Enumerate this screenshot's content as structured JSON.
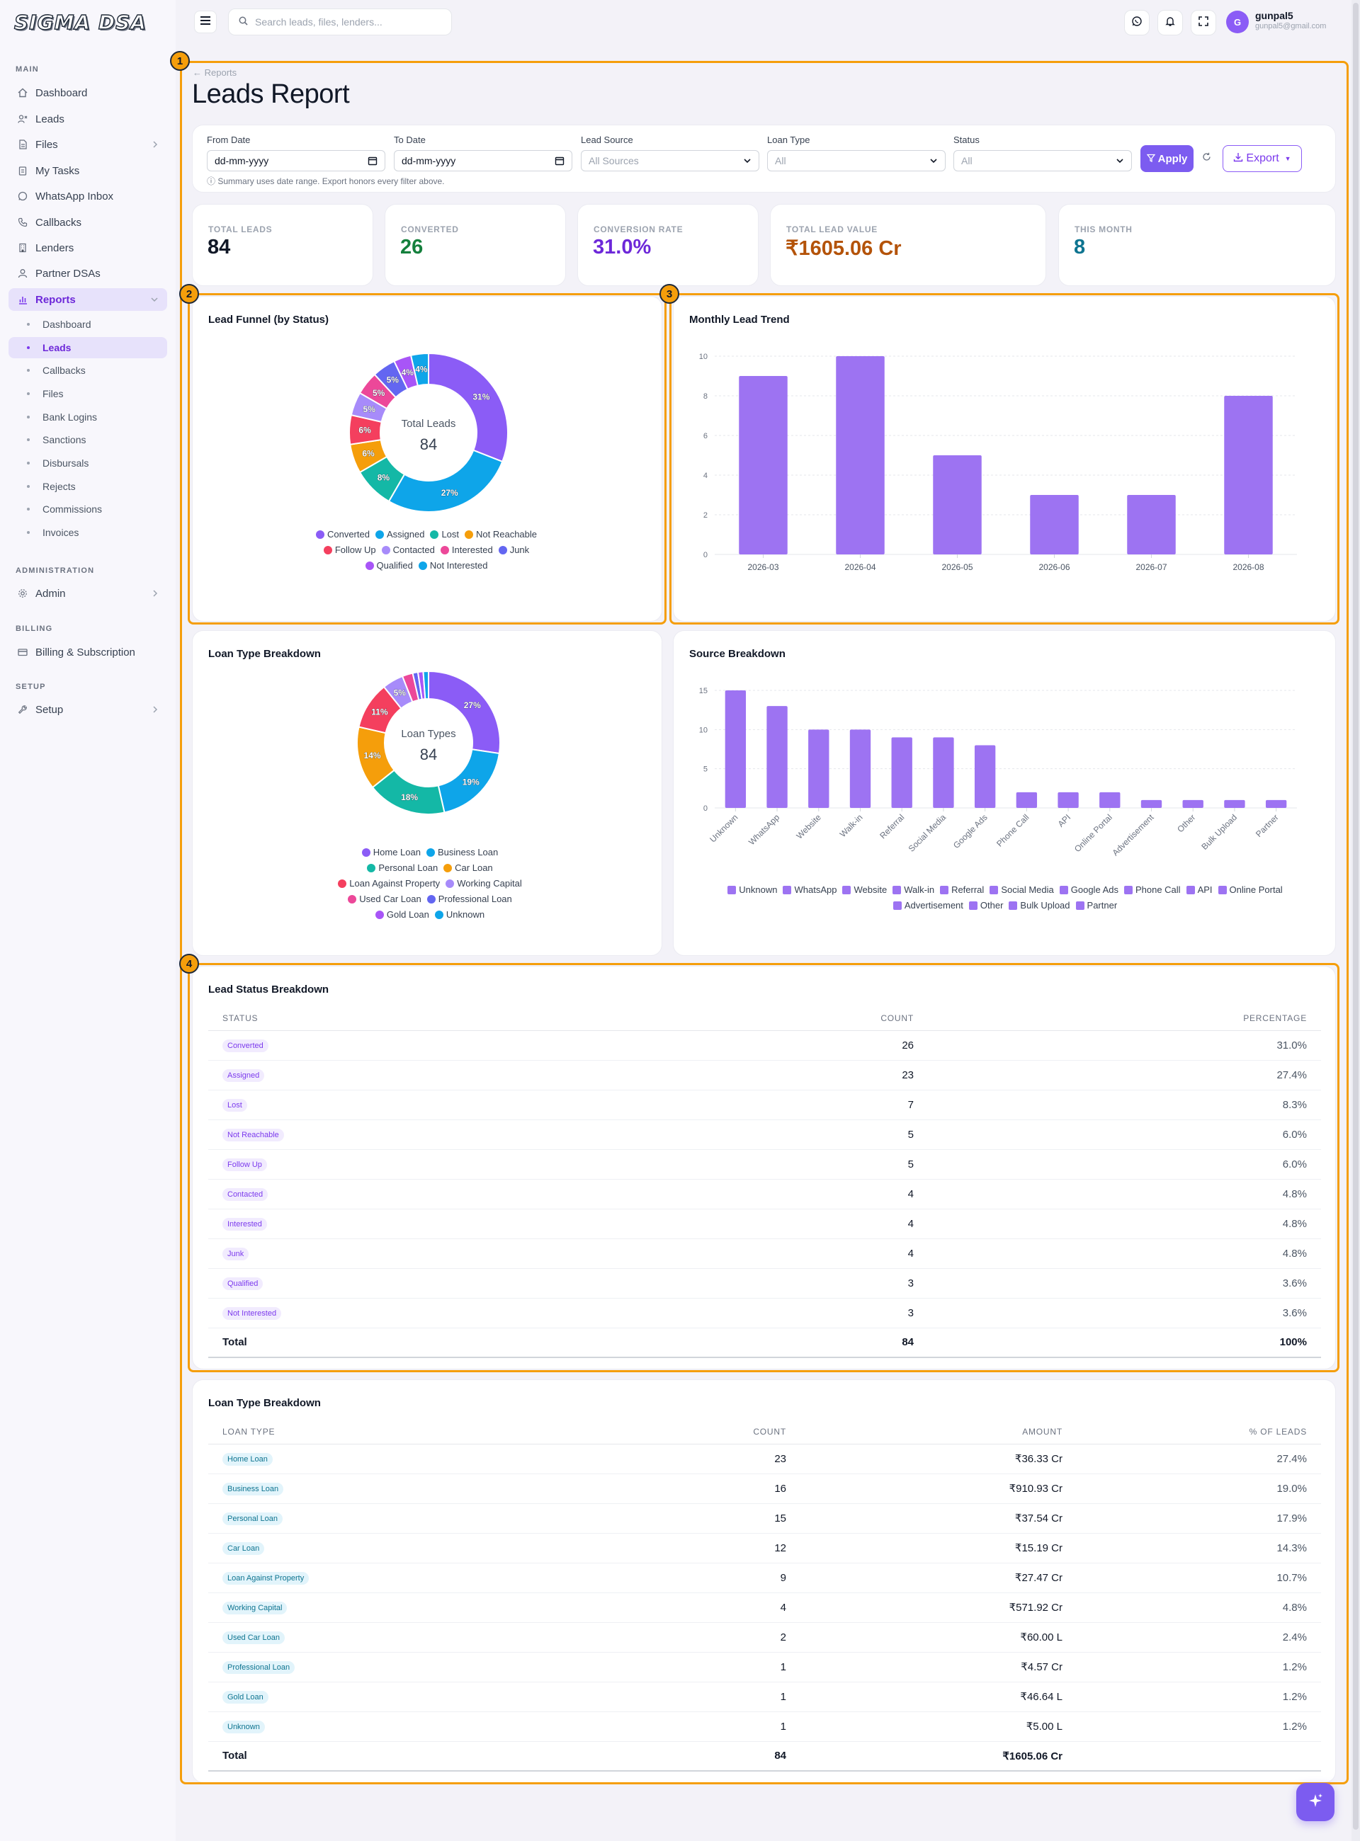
{
  "app": {
    "logo": "SIGMA DSA"
  },
  "search": {
    "placeholder": "Search leads, files, lenders..."
  },
  "user": {
    "initial": "G",
    "name": "gunpal5",
    "email": "gunpal5@gmail.com"
  },
  "sidebar": {
    "main_label": "MAIN",
    "admin_label": "ADMINISTRATION",
    "billing_label": "BILLING",
    "setup_label": "SETUP",
    "items": [
      "Dashboard",
      "Leads",
      "Files",
      "My Tasks",
      "WhatsApp Inbox",
      "Callbacks",
      "Lenders",
      "Partner DSAs",
      "Reports"
    ],
    "reports_sub": [
      "Dashboard",
      "Leads",
      "Callbacks",
      "Files",
      "Bank Logins",
      "Sanctions",
      "Disbursals",
      "Rejects",
      "Commissions",
      "Invoices"
    ],
    "admin": "Admin",
    "billing": "Billing & Subscription",
    "setup": "Setup"
  },
  "page": {
    "breadcrumb": "Reports",
    "title": "Leads Report"
  },
  "filters": {
    "from_label": "From Date",
    "from_value": "dd-mm-yyyy",
    "to_label": "To Date",
    "to_value": "dd-mm-yyyy",
    "source_label": "Lead Source",
    "source_value": "All Sources",
    "loan_label": "Loan Type",
    "loan_value": "All",
    "status_label": "Status",
    "status_value": "All",
    "apply": "Apply",
    "export": "Export",
    "note": "Summary uses date range. Export honors every filter above."
  },
  "stats": [
    {
      "label": "TOTAL LEADS",
      "value": "84",
      "color": "#111827"
    },
    {
      "label": "CONVERTED",
      "value": "26",
      "color": "#15803d"
    },
    {
      "label": "CONVERSION RATE",
      "value": "31.0%",
      "color": "#6d28d9"
    },
    {
      "label": "TOTAL LEAD VALUE",
      "value": "₹1605.06 Cr",
      "color": "#b45309"
    },
    {
      "label": "THIS MONTH",
      "value": "8",
      "color": "#0e7490"
    }
  ],
  "annotations": [
    "1",
    "2",
    "3",
    "4"
  ],
  "funnel": {
    "title": "Lead Funnel (by Status)",
    "center_label": "Total Leads",
    "center_value": "84"
  },
  "trend": {
    "title": "Monthly Lead Trend"
  },
  "loanpie": {
    "title": "Loan Type Breakdown",
    "center_label": "Loan Types",
    "center_value": "84"
  },
  "source": {
    "title": "Source Breakdown"
  },
  "status_table": {
    "title": "Lead Status Breakdown",
    "headers": [
      "STATUS",
      "COUNT",
      "PERCENTAGE"
    ],
    "rows": [
      [
        "Converted",
        "26",
        "31.0%"
      ],
      [
        "Assigned",
        "23",
        "27.4%"
      ],
      [
        "Lost",
        "7",
        "8.3%"
      ],
      [
        "Not Reachable",
        "5",
        "6.0%"
      ],
      [
        "Follow Up",
        "5",
        "6.0%"
      ],
      [
        "Contacted",
        "4",
        "4.8%"
      ],
      [
        "Interested",
        "4",
        "4.8%"
      ],
      [
        "Junk",
        "4",
        "4.8%"
      ],
      [
        "Qualified",
        "3",
        "3.6%"
      ],
      [
        "Not Interested",
        "3",
        "3.6%"
      ]
    ],
    "total": [
      "Total",
      "84",
      "100%"
    ]
  },
  "loan_table": {
    "title": "Loan Type Breakdown",
    "headers": [
      "LOAN TYPE",
      "COUNT",
      "AMOUNT",
      "% OF LEADS"
    ],
    "rows": [
      [
        "Home Loan",
        "23",
        "₹36.33 Cr",
        "27.4%"
      ],
      [
        "Business Loan",
        "16",
        "₹910.93 Cr",
        "19.0%"
      ],
      [
        "Personal Loan",
        "15",
        "₹37.54 Cr",
        "17.9%"
      ],
      [
        "Car Loan",
        "12",
        "₹15.19 Cr",
        "14.3%"
      ],
      [
        "Loan Against Property",
        "9",
        "₹27.47 Cr",
        "10.7%"
      ],
      [
        "Working Capital",
        "4",
        "₹571.92 Cr",
        "4.8%"
      ],
      [
        "Used Car Loan",
        "2",
        "₹60.00 L",
        "2.4%"
      ],
      [
        "Professional Loan",
        "1",
        "₹4.57 Cr",
        "1.2%"
      ],
      [
        "Gold Loan",
        "1",
        "₹46.64 L",
        "1.2%"
      ],
      [
        "Unknown",
        "1",
        "₹5.00 L",
        "1.2%"
      ]
    ],
    "total": [
      "Total",
      "84",
      "₹1605.06 Cr",
      ""
    ]
  },
  "chart_data": [
    {
      "type": "pie",
      "title": "Lead Funnel (by Status)",
      "categories": [
        "Converted",
        "Assigned",
        "Lost",
        "Not Reachable",
        "Follow Up",
        "Contacted",
        "Interested",
        "Junk",
        "Qualified",
        "Not Interested"
      ],
      "values": [
        26,
        23,
        7,
        5,
        5,
        4,
        4,
        4,
        3,
        3
      ],
      "labels": [
        "31%",
        "27%",
        "8%",
        "6%",
        "6%",
        "5%",
        "5%",
        "5%",
        "4%",
        "4%"
      ],
      "colors": [
        "#8b5cf6",
        "#0ea5e9",
        "#14b8a6",
        "#f59e0b",
        "#f43f5e",
        "#a78bfa",
        "#ec4899",
        "#6366f1",
        "#a855f7",
        "#0ea5e9"
      ]
    },
    {
      "type": "bar",
      "title": "Monthly Lead Trend",
      "categories": [
        "2026-03",
        "2026-04",
        "2026-05",
        "2026-06",
        "2026-07",
        "2026-08"
      ],
      "values": [
        9,
        10,
        5,
        3,
        3,
        8
      ],
      "ylim": [
        0,
        10
      ],
      "yticks": [
        0,
        2,
        4,
        6,
        8,
        10
      ],
      "color": "#9d73f2"
    },
    {
      "type": "pie",
      "title": "Loan Type Breakdown",
      "categories": [
        "Home Loan",
        "Business Loan",
        "Personal Loan",
        "Car Loan",
        "Loan Against Property",
        "Working Capital",
        "Used Car Loan",
        "Professional Loan",
        "Gold Loan",
        "Unknown"
      ],
      "values": [
        23,
        16,
        15,
        12,
        9,
        4,
        2,
        1,
        1,
        1
      ],
      "labels": [
        "27%",
        "19%",
        "18%",
        "14%",
        "11%",
        "5%",
        "",
        "",
        "",
        ""
      ],
      "colors": [
        "#8b5cf6",
        "#0ea5e9",
        "#14b8a6",
        "#f59e0b",
        "#f43f5e",
        "#a78bfa",
        "#ec4899",
        "#6366f1",
        "#a855f7",
        "#0ea5e9"
      ]
    },
    {
      "type": "bar",
      "title": "Source Breakdown",
      "categories": [
        "Unknown",
        "WhatsApp",
        "Website",
        "Walk-in",
        "Referral",
        "Social Media",
        "Google Ads",
        "Phone Call",
        "API",
        "Online Portal",
        "Advertisement",
        "Other",
        "Bulk Upload",
        "Partner"
      ],
      "values": [
        15,
        13,
        10,
        10,
        9,
        9,
        8,
        2,
        2,
        2,
        1,
        1,
        1,
        1
      ],
      "ylim": [
        0,
        15
      ],
      "yticks": [
        0,
        5,
        10,
        15
      ],
      "color": "#9d73f2"
    }
  ]
}
